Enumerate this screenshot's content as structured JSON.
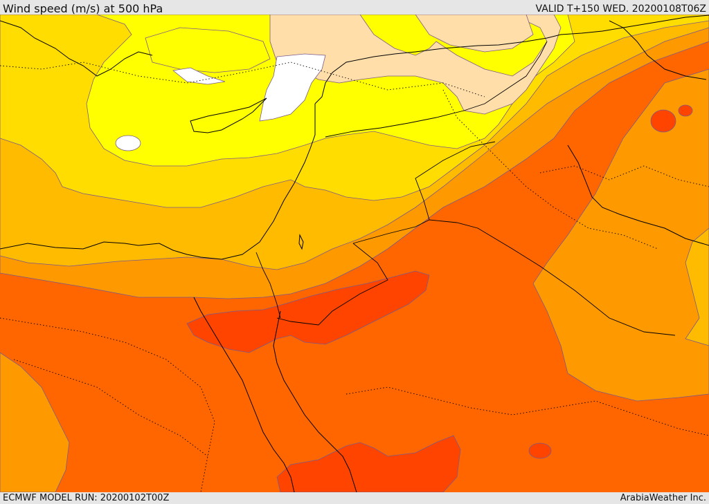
{
  "header": {
    "title": "Wind speed (m/s) at 500 hPa",
    "valid": "VALID T+150 WED. 20200108T06Z"
  },
  "footer": {
    "model_run": "ECMWF MODEL RUN: 20200102T00Z",
    "credit": "ArabiaWeather Inc."
  },
  "palette": {
    "white": "#ffffff",
    "light_tan": "#ffdeaa",
    "yellow": "#ffff00",
    "gold": "#ffdd00",
    "amber": "#ffbb00",
    "orange_light": "#ff9900",
    "orange": "#ff6600",
    "red_orange": "#ff4400"
  }
}
